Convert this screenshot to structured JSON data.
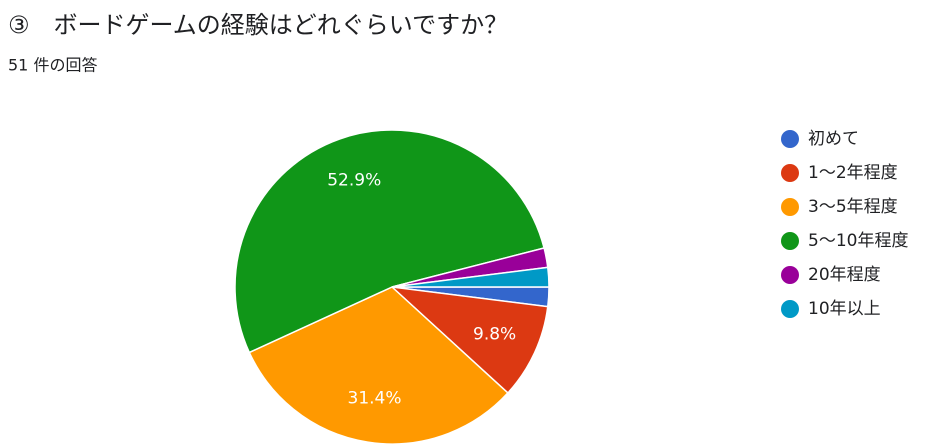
{
  "chart_data": {
    "type": "pie",
    "title": "③　ボードゲームの経験はどれぐらいですか？",
    "subtitle": "51 件の回答",
    "categories": [
      "初めて",
      "1〜2年程度",
      "3〜5年程度",
      "5〜10年程度",
      "20年程度",
      "10年以上"
    ],
    "values": [
      2.0,
      9.8,
      31.4,
      52.9,
      2.0,
      2.0
    ],
    "value_labels": [
      null,
      "9.8%",
      "31.4%",
      "52.9%",
      null,
      null
    ],
    "colors": [
      "#3366cc",
      "#dc3912",
      "#ff9900",
      "#109618",
      "#990099",
      "#0099c6"
    ],
    "legend": "right"
  }
}
